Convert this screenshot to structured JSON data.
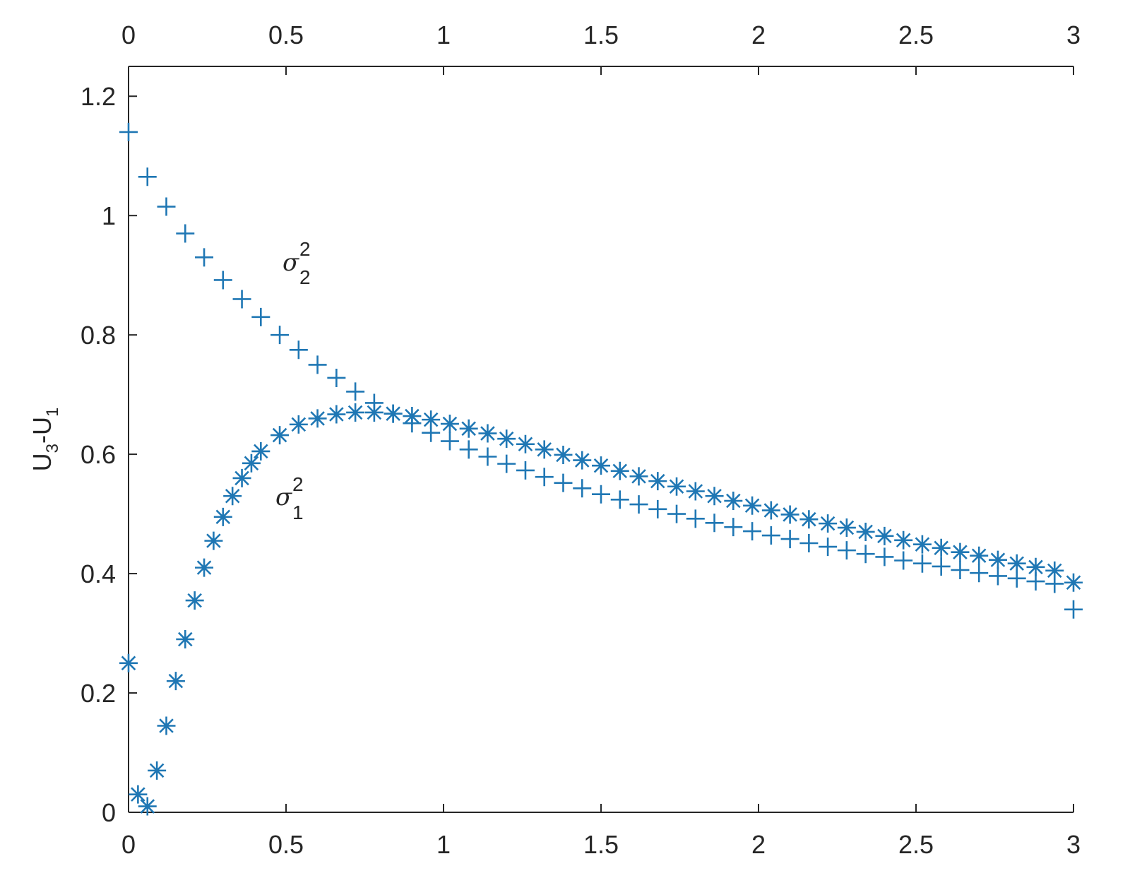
{
  "chart_data": {
    "type": "scatter",
    "title": "",
    "xlabel": "",
    "ylabel": "U3-U1",
    "ylabel_parts": {
      "a": "U",
      "a_sub": "3",
      "sep": "-",
      "b": "U",
      "b_sub": "1"
    },
    "xlim": [
      0,
      3
    ],
    "ylim": [
      0,
      1.25
    ],
    "x_ticks": [
      "0",
      "0.5",
      "1",
      "1.5",
      "2",
      "2.5",
      "3"
    ],
    "x_tick_values": [
      0,
      0.5,
      1,
      1.5,
      2,
      2.5,
      3
    ],
    "y_ticks": [
      "0",
      "0.2",
      "0.4",
      "0.6",
      "0.8",
      "1",
      "1.2"
    ],
    "y_tick_values": [
      0,
      0.2,
      0.4,
      0.6,
      0.8,
      1,
      1.2
    ],
    "top_axis_ticks": true,
    "grid": false,
    "color": "#1f77b4",
    "annotations": [
      {
        "id": "sigma2",
        "symbol": "σ",
        "sup": "2",
        "sub": "2",
        "x": 0.5,
        "y": 0.9
      },
      {
        "id": "sigma1",
        "symbol": "σ",
        "sup": "2",
        "sub": "1",
        "x": 0.48,
        "y": 0.5
      }
    ],
    "series": [
      {
        "marker": "plus",
        "x": [
          0,
          0.06,
          0.12,
          0.18,
          0.24,
          0.3,
          0.36,
          0.42,
          0.48,
          0.54,
          0.6,
          0.66,
          0.72,
          0.78,
          0.84,
          0.9,
          0.96,
          1.02,
          1.08,
          1.14,
          1.2,
          1.26,
          1.32,
          1.38,
          1.44,
          1.5,
          1.56,
          1.62,
          1.68,
          1.74,
          1.8,
          1.86,
          1.92,
          1.98,
          2.04,
          2.1,
          2.16,
          2.22,
          2.28,
          2.34,
          2.4,
          2.46,
          2.52,
          2.58,
          2.64,
          2.7,
          2.76,
          2.82,
          2.88,
          2.94,
          3.0
        ],
        "y": [
          1.14,
          1.065,
          1.015,
          0.97,
          0.93,
          0.892,
          0.86,
          0.83,
          0.8,
          0.775,
          0.75,
          0.728,
          0.705,
          0.686,
          0.668,
          0.652,
          0.636,
          0.622,
          0.608,
          0.596,
          0.584,
          0.573,
          0.562,
          0.552,
          0.543,
          0.533,
          0.524,
          0.516,
          0.508,
          0.5,
          0.492,
          0.485,
          0.478,
          0.471,
          0.464,
          0.458,
          0.451,
          0.445,
          0.439,
          0.433,
          0.428,
          0.422,
          0.417,
          0.412,
          0.406,
          0.401,
          0.396,
          0.392,
          0.387,
          0.383,
          0.34
        ]
      },
      {
        "marker": "asterisk",
        "x": [
          0,
          0.03,
          0.06,
          0.09,
          0.12,
          0.15,
          0.18,
          0.21,
          0.24,
          0.27,
          0.3,
          0.33,
          0.36,
          0.39,
          0.42,
          0.48,
          0.54,
          0.6,
          0.66,
          0.72,
          0.78,
          0.84,
          0.9,
          0.96,
          1.02,
          1.08,
          1.14,
          1.2,
          1.26,
          1.32,
          1.38,
          1.44,
          1.5,
          1.56,
          1.62,
          1.68,
          1.74,
          1.8,
          1.86,
          1.92,
          1.98,
          2.04,
          2.1,
          2.16,
          2.22,
          2.28,
          2.34,
          2.4,
          2.46,
          2.52,
          2.58,
          2.64,
          2.7,
          2.76,
          2.82,
          2.88,
          2.94,
          3.0
        ],
        "y": [
          0.25,
          0.03,
          0.01,
          0.07,
          0.145,
          0.22,
          0.29,
          0.355,
          0.41,
          0.455,
          0.495,
          0.53,
          0.56,
          0.585,
          0.605,
          0.632,
          0.65,
          0.66,
          0.667,
          0.67,
          0.67,
          0.668,
          0.664,
          0.658,
          0.651,
          0.643,
          0.635,
          0.626,
          0.617,
          0.608,
          0.599,
          0.59,
          0.581,
          0.572,
          0.563,
          0.555,
          0.546,
          0.538,
          0.53,
          0.522,
          0.514,
          0.506,
          0.499,
          0.491,
          0.484,
          0.477,
          0.47,
          0.463,
          0.456,
          0.449,
          0.443,
          0.436,
          0.43,
          0.423,
          0.417,
          0.411,
          0.405,
          0.385
        ]
      }
    ]
  }
}
